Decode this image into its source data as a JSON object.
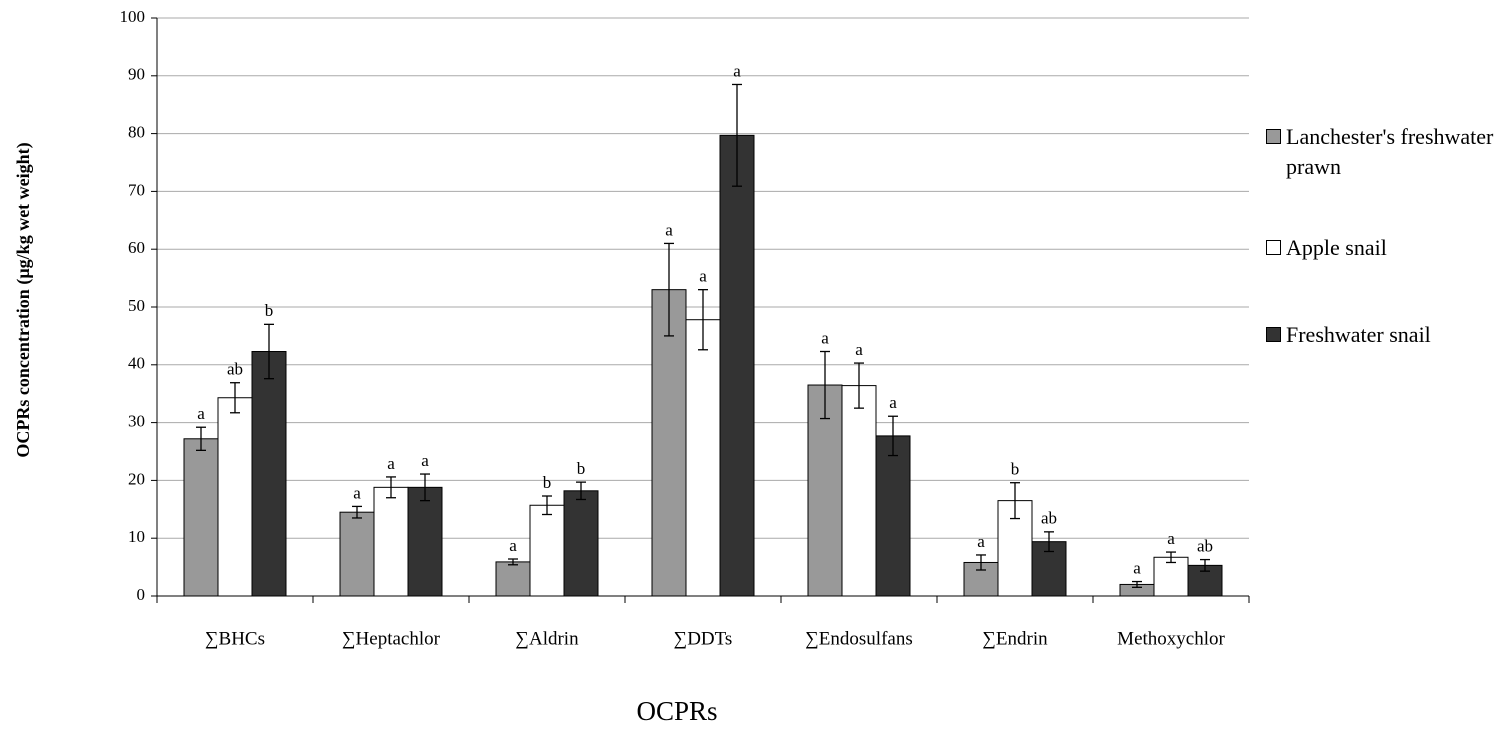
{
  "chart_data": {
    "type": "bar",
    "y_label": "OCPRs concentration (µg/kg wet weight)",
    "x_label": "OCPRs",
    "categories": [
      "∑BHCs",
      "∑Heptachlor",
      "∑Aldrin",
      "∑DDTs",
      "∑Endosulfans",
      "∑Endrin",
      "Methoxychlor"
    ],
    "series": [
      {
        "name": "Lanchester's freshwater prawn",
        "color": "#999999",
        "values": [
          27.2,
          14.5,
          5.9,
          53,
          36.5,
          5.8,
          2
        ],
        "errors": [
          2,
          1,
          0.5,
          8,
          5.8,
          1.3,
          0.5
        ],
        "letters": [
          "a",
          "a",
          "a",
          "a",
          "a",
          "a",
          "a"
        ]
      },
      {
        "name": "Apple snail",
        "color": "#ffffff",
        "values": [
          34.3,
          18.8,
          15.7,
          47.8,
          36.4,
          16.5,
          6.7
        ],
        "errors": [
          2.6,
          1.8,
          1.6,
          5.2,
          3.9,
          3.1,
          0.9
        ],
        "letters": [
          "ab",
          "a",
          "b",
          "a",
          "a",
          "b",
          "a"
        ]
      },
      {
        "name": "Freshwater snail",
        "color": "#333333",
        "values": [
          42.3,
          18.8,
          18.2,
          79.7,
          27.7,
          9.4,
          5.3
        ],
        "errors": [
          4.7,
          2.3,
          1.5,
          8.8,
          3.4,
          1.7,
          1
        ],
        "letters": [
          "b",
          "a",
          "b",
          "a",
          "a",
          "ab",
          "ab"
        ]
      }
    ],
    "ylim": [
      0,
      100
    ],
    "yticks": [
      0,
      10,
      20,
      30,
      40,
      50,
      60,
      70,
      80,
      90,
      100
    ],
    "grid": true
  }
}
